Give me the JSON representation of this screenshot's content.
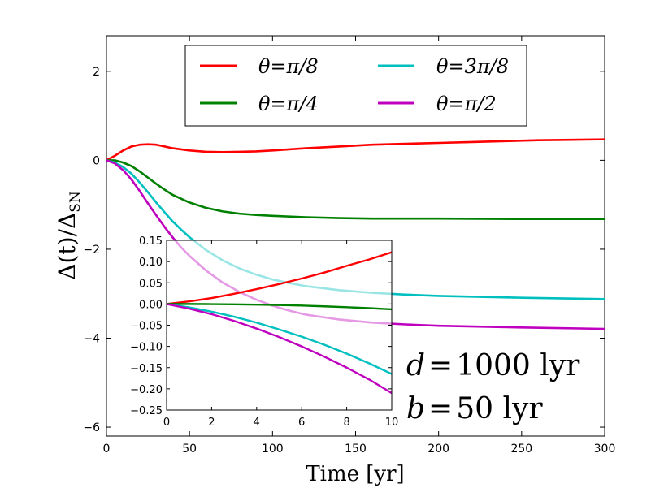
{
  "chart_data": [
    {
      "type": "line",
      "xlabel": "Time [yr]",
      "ylabel": "Δ(t)/ΔSN",
      "ylabel_main": "Δ(t)/Δ",
      "ylabel_sub": "SN",
      "xlim": [
        0,
        300
      ],
      "ylim": [
        -6.2,
        2.8
      ],
      "xticks": [
        0,
        50,
        100,
        150,
        200,
        250,
        300
      ],
      "yticks": [
        2,
        0,
        -2,
        -4,
        -6
      ],
      "ytick_labels": [
        "2",
        "0",
        "−2",
        "−4",
        "−6"
      ],
      "grid": false,
      "legend_position": "top-center",
      "annotations": [
        "d = 1000 lyr",
        "b = 50 lyr"
      ],
      "annotation_d": {
        "var": "d",
        "eq": "=",
        "val": "1000 lyr"
      },
      "annotation_b": {
        "var": "b",
        "eq": "=",
        "val": "50 lyr"
      },
      "series": [
        {
          "name": "θ=π/8",
          "color": "#ff0000",
          "x": [
            0,
            5,
            10,
            15,
            20,
            25,
            30,
            35,
            40,
            50,
            60,
            70,
            80,
            90,
            100,
            120,
            140,
            160,
            180,
            200,
            220,
            240,
            260,
            280,
            300
          ],
          "y": [
            0,
            0.1,
            0.22,
            0.31,
            0.35,
            0.36,
            0.35,
            0.31,
            0.27,
            0.22,
            0.19,
            0.185,
            0.19,
            0.2,
            0.22,
            0.27,
            0.31,
            0.35,
            0.37,
            0.39,
            0.41,
            0.43,
            0.45,
            0.46,
            0.47
          ]
        },
        {
          "name": "θ=π/4",
          "color": "#008000",
          "x": [
            0,
            5,
            10,
            15,
            20,
            25,
            30,
            35,
            40,
            50,
            60,
            70,
            80,
            90,
            100,
            120,
            140,
            160,
            180,
            200,
            250,
            300
          ],
          "y": [
            0,
            0.0,
            -0.05,
            -0.13,
            -0.25,
            -0.39,
            -0.53,
            -0.66,
            -0.78,
            -0.95,
            -1.07,
            -1.15,
            -1.2,
            -1.23,
            -1.25,
            -1.28,
            -1.3,
            -1.31,
            -1.31,
            -1.31,
            -1.32,
            -1.32
          ]
        },
        {
          "name": "θ=3π/8",
          "color": "#00bfbf",
          "x": [
            0,
            5,
            10,
            15,
            20,
            25,
            30,
            35,
            40,
            45,
            50,
            60,
            70,
            80,
            90,
            100,
            110,
            120,
            140,
            160,
            180,
            200,
            250,
            300
          ],
          "y": [
            0,
            -0.05,
            -0.15,
            -0.3,
            -0.5,
            -0.72,
            -0.95,
            -1.17,
            -1.38,
            -1.56,
            -1.73,
            -2.02,
            -2.25,
            -2.43,
            -2.57,
            -2.68,
            -2.76,
            -2.83,
            -2.92,
            -2.98,
            -3.02,
            -3.05,
            -3.09,
            -3.12
          ]
        },
        {
          "name": "θ=π/2",
          "color": "#bf00bf",
          "x": [
            0,
            5,
            10,
            15,
            20,
            25,
            30,
            35,
            40,
            45,
            50,
            60,
            70,
            80,
            90,
            100,
            110,
            120,
            140,
            160,
            180,
            200,
            250,
            300
          ],
          "y": [
            0,
            -0.07,
            -0.22,
            -0.43,
            -0.69,
            -0.97,
            -1.24,
            -1.5,
            -1.74,
            -1.96,
            -2.15,
            -2.48,
            -2.75,
            -2.96,
            -3.13,
            -3.27,
            -3.38,
            -3.47,
            -3.58,
            -3.65,
            -3.69,
            -3.72,
            -3.76,
            -3.79
          ]
        }
      ]
    },
    {
      "type": "line",
      "xlim": [
        0,
        10
      ],
      "ylim": [
        -0.25,
        0.15
      ],
      "xticks": [
        0,
        2,
        4,
        6,
        8,
        10
      ],
      "yticks": [
        0.15,
        0.1,
        0.05,
        0.0,
        -0.05,
        -0.1,
        -0.15,
        -0.2,
        -0.25
      ],
      "ytick_labels": [
        "0.15",
        "0.10",
        "0.05",
        "0.00",
        "−0.05",
        "−0.10",
        "−0.15",
        "−0.20",
        "−0.25"
      ],
      "series": [
        {
          "name": "θ=π/8",
          "color": "#ff0000",
          "x": [
            0,
            1,
            2,
            3,
            4,
            5,
            6,
            7,
            8,
            9,
            10
          ],
          "y": [
            0,
            0.006,
            0.014,
            0.024,
            0.035,
            0.047,
            0.06,
            0.074,
            0.09,
            0.105,
            0.122
          ]
        },
        {
          "name": "θ=π/4",
          "color": "#008000",
          "x": [
            0,
            1,
            2,
            3,
            4,
            5,
            6,
            7,
            8,
            9,
            10
          ],
          "y": [
            0,
            0.0,
            -0.0003,
            -0.0008,
            -0.0015,
            -0.0025,
            -0.0038,
            -0.0055,
            -0.0075,
            -0.0098,
            -0.0125
          ]
        },
        {
          "name": "θ=3π/8",
          "color": "#00bfbf",
          "x": [
            0,
            1,
            2,
            3,
            4,
            5,
            6,
            7,
            8,
            9,
            10
          ],
          "y": [
            0,
            -0.008,
            -0.018,
            -0.03,
            -0.044,
            -0.06,
            -0.077,
            -0.096,
            -0.117,
            -0.14,
            -0.165
          ]
        },
        {
          "name": "θ=π/2",
          "color": "#bf00bf",
          "x": [
            0,
            1,
            2,
            3,
            4,
            5,
            6,
            7,
            8,
            9,
            10
          ],
          "y": [
            0,
            -0.011,
            -0.024,
            -0.04,
            -0.058,
            -0.078,
            -0.1,
            -0.124,
            -0.15,
            -0.178,
            -0.21
          ]
        }
      ]
    }
  ]
}
